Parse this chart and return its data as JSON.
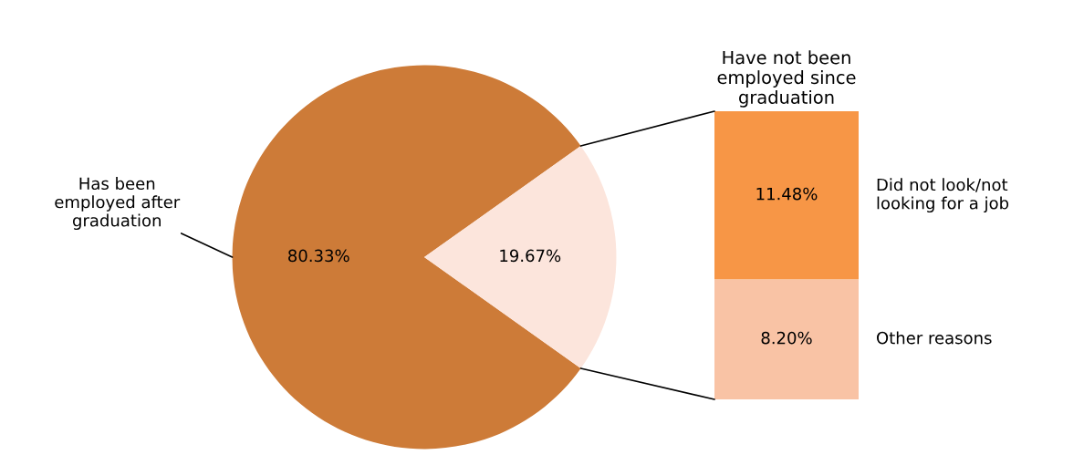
{
  "chart_data": [
    {
      "type": "pie",
      "categories": [
        "Has been\nemployed after\ngraduation",
        null
      ],
      "values": [
        80.33,
        19.67
      ],
      "colors": [
        "#cd7b38",
        "#fce5dc"
      ],
      "value_labels": [
        "80.33%",
        "19.67%"
      ]
    },
    {
      "type": "bar",
      "title": "Have not been\nemployed since\ngraduation",
      "categories": [
        null
      ],
      "stacked": true,
      "series": [
        {
          "name": "Other reasons",
          "color": "#f9c3a5",
          "values": [
            8.2
          ],
          "value_labels": [
            "8.20%"
          ]
        },
        {
          "name": "Did not look/not\nlooking for a job",
          "color": "#f79646",
          "values": [
            11.48
          ],
          "value_labels": [
            "11.48%"
          ]
        }
      ]
    }
  ]
}
